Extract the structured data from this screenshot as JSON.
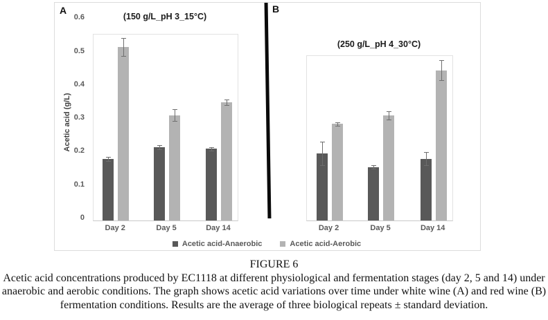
{
  "figure": {
    "panel_a_letter": "A",
    "panel_b_letter": "B",
    "y_axis_title": "Acetic acid (g/L)"
  },
  "chart_data": [
    {
      "type": "bar",
      "panel": "A",
      "title": "(150 g/L_pH 3_15°C)",
      "categories": [
        "Day 2",
        "Day 5",
        "Day 14"
      ],
      "series": [
        {
          "name": "Acetic acid-Anaerobic",
          "color": "#595959",
          "values": [
            0.185,
            0.22,
            0.215
          ],
          "errors": [
            0.006,
            0.006,
            0.005
          ]
        },
        {
          "name": "Acetic acid-Aerobic",
          "color": "#b3b3b3",
          "values": [
            0.52,
            0.315,
            0.355
          ],
          "errors": [
            0.027,
            0.018,
            0.008
          ]
        }
      ],
      "ylabel": "Acetic acid (g/L)",
      "ylim": [
        0,
        0.6
      ],
      "yticks": [
        0,
        0.1,
        0.2,
        0.3,
        0.4,
        0.5,
        0.6
      ],
      "grid": false,
      "legend_position": "bottom"
    },
    {
      "type": "bar",
      "panel": "B",
      "title": "(250 g/L_pH 4_30°C)",
      "categories": [
        "Day 2",
        "Day 5",
        "Day 14"
      ],
      "series": [
        {
          "name": "Acetic acid-Anaerobic",
          "color": "#595959",
          "values": [
            0.2,
            0.16,
            0.185
          ],
          "errors": [
            0.035,
            0.005,
            0.02
          ]
        },
        {
          "name": "Acetic acid-Aerobic",
          "color": "#b3b3b3",
          "values": [
            0.29,
            0.315,
            0.45
          ],
          "errors": [
            0.005,
            0.012,
            0.03
          ]
        }
      ],
      "ylabel": "Acetic acid (g/L)",
      "ylim": [
        0,
        0.6
      ],
      "yticks": [],
      "grid": false,
      "legend_position": "bottom"
    }
  ],
  "legend": [
    {
      "label": "Acetic acid-Anaerobic",
      "color": "#595959"
    },
    {
      "label": "Acetic acid-Aerobic",
      "color": "#b3b3b3"
    }
  ],
  "caption": {
    "figure_label": "FIGURE 6",
    "lines": [
      "Acetic acid concentrations produced by EC1118 at different physiological and fermentation stages (day 2, 5 and 14) under",
      "anaerobic and aerobic conditions. The graph shows acetic acid variations over time under white wine (A) and red wine (B)",
      "fermentation conditions. Results are the average of three biological repeats ± standard deviation."
    ]
  }
}
